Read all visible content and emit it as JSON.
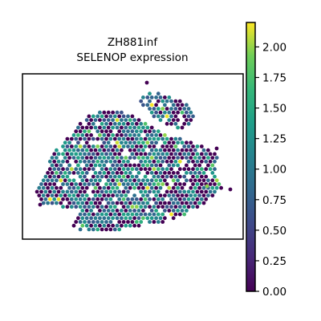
{
  "chart_data": {
    "type": "scatter",
    "subtype": "spatial-hexbin",
    "title_line1": "ZH881inf",
    "title_line2": "SELENOP expression",
    "xlabel": "",
    "ylabel": "",
    "axis_ticks_visible": false,
    "grid": false,
    "colormap": "viridis",
    "colorbar": {
      "min": 0.0,
      "max": 2.2,
      "ticks": [
        0.0,
        0.25,
        0.5,
        0.75,
        1.0,
        1.25,
        1.5,
        1.75,
        2.0
      ],
      "tick_labels": [
        "0.00",
        "0.25",
        "0.50",
        "0.75",
        "1.00",
        "1.25",
        "1.50",
        "1.75",
        "2.00"
      ],
      "placement": "right"
    },
    "value_range": [
      0.0,
      2.2
    ],
    "colors": {
      "low": "#440154",
      "mid": "#21918c",
      "high": "#fde725"
    }
  }
}
